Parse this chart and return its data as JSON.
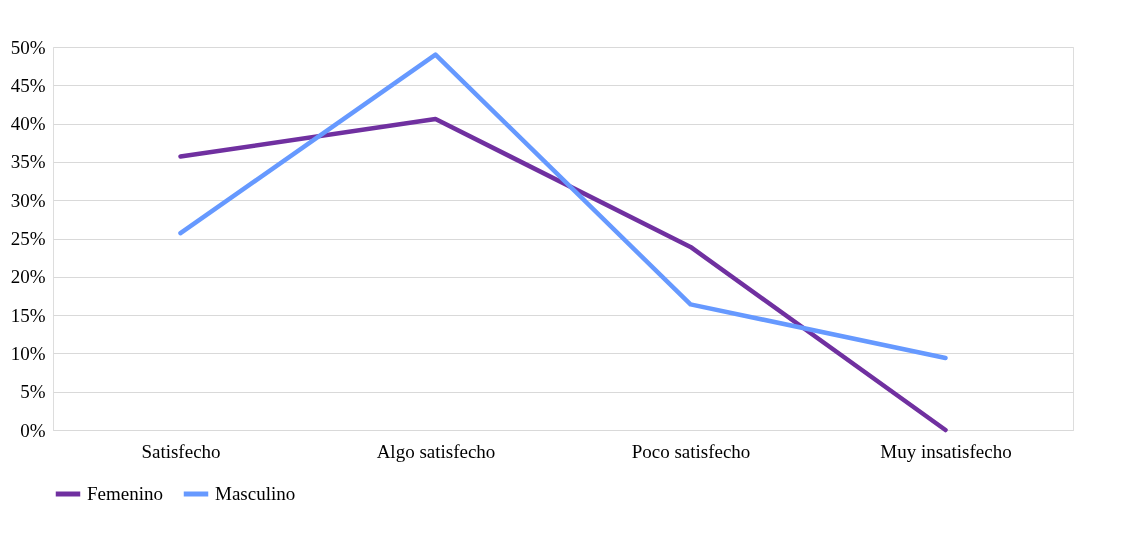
{
  "chart_data": {
    "type": "line",
    "categories": [
      "Satisfecho",
      "Algo satisfecho",
      "Poco satisfecho",
      "Muy insatisfecho"
    ],
    "series": [
      {
        "name": "Femenino",
        "color": "#7030a0",
        "values": [
          35.7,
          40.6,
          23.9,
          0
        ]
      },
      {
        "name": "Masculino",
        "color": "#6699ff",
        "values": [
          25.7,
          49.0,
          16.4,
          9.4
        ]
      }
    ],
    "ylim": [
      0,
      50
    ],
    "yticks": [
      {
        "value": 0,
        "label": "0%"
      },
      {
        "value": 5,
        "label": "5%"
      },
      {
        "value": 10,
        "label": "10%"
      },
      {
        "value": 15,
        "label": "15%"
      },
      {
        "value": 20,
        "label": "20%"
      },
      {
        "value": 25,
        "label": "25%"
      },
      {
        "value": 30,
        "label": "30%"
      },
      {
        "value": 35,
        "label": "35%"
      },
      {
        "value": 40,
        "label": "40%"
      },
      {
        "value": 45,
        "label": "45%"
      },
      {
        "value": 50,
        "label": "50%"
      }
    ],
    "grid": "y",
    "legend": "bottom",
    "marker": "none",
    "line_style": "solid"
  }
}
